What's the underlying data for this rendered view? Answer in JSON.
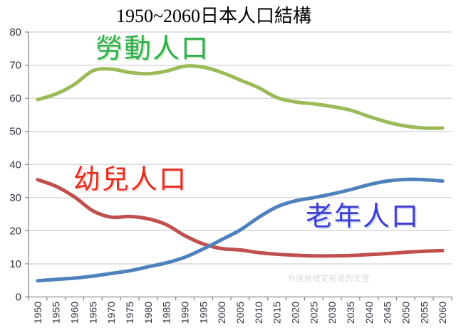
{
  "title": "1950~2060日本人口結構",
  "watermark": "外匯是穩定投資的天堂",
  "colors": {
    "grid": "#c6c6c6",
    "axis": "#8c8c8c",
    "tick_label": "#333340",
    "background": "#ffffff"
  },
  "chart_data": {
    "type": "line",
    "title": "1950~2060日本人口結構",
    "xlabel": "",
    "ylabel": "",
    "ylim": [
      0,
      80
    ],
    "ytick_step": 10,
    "grid": true,
    "legend_position": "inline-annotations",
    "x": [
      1950,
      1955,
      1960,
      1965,
      1970,
      1975,
      1980,
      1985,
      1990,
      1995,
      2000,
      2005,
      2010,
      2015,
      2020,
      2025,
      2030,
      2035,
      2040,
      2045,
      2050,
      2055,
      2060
    ],
    "series": [
      {
        "key": "working-population",
        "name": "勞動人口",
        "line_color": "#9BBB59",
        "label_color": "#2EAE4E",
        "values": [
          59.6,
          61.3,
          64.2,
          68.3,
          68.8,
          67.8,
          67.4,
          68.2,
          69.7,
          69.4,
          67.8,
          65.5,
          63.2,
          60.2,
          58.9,
          58.3,
          57.5,
          56.4,
          54.5,
          52.8,
          51.6,
          51.0,
          51.0
        ]
      },
      {
        "key": "child-population",
        "name": "幼兒人口",
        "line_color": "#C0504D",
        "label_color": "#E42D1F",
        "values": [
          35.4,
          33.4,
          30.2,
          26.0,
          24.1,
          24.3,
          23.6,
          21.8,
          18.5,
          16.0,
          14.6,
          14.2,
          13.4,
          12.9,
          12.6,
          12.4,
          12.4,
          12.5,
          12.8,
          13.1,
          13.5,
          13.8,
          14.0
        ]
      },
      {
        "key": "elderly-population",
        "name": "老年人口",
        "line_color": "#4F81BD",
        "label_color": "#3E3BD0",
        "values": [
          4.9,
          5.3,
          5.7,
          6.3,
          7.1,
          7.9,
          9.1,
          10.3,
          12.0,
          14.5,
          17.3,
          20.2,
          24.0,
          27.2,
          29.0,
          30.0,
          31.1,
          32.4,
          33.9,
          35.0,
          35.5,
          35.4,
          35.0
        ]
      }
    ]
  }
}
